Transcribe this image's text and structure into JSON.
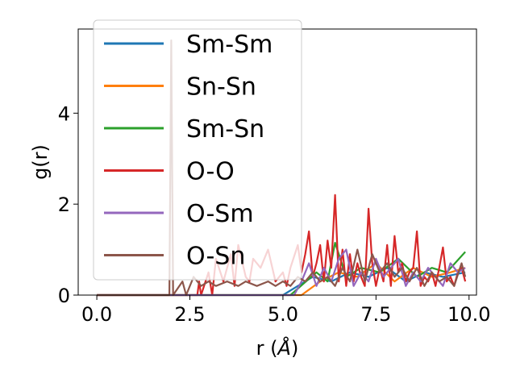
{
  "chart_data": {
    "type": "line",
    "xlabel_prefix": "r (",
    "xlabel_unit": "Å",
    "xlabel_suffix": ")",
    "ylabel": "g(r)",
    "xlim": [
      -0.5,
      10.2
    ],
    "ylim": [
      0,
      5.85
    ],
    "xticks": [
      0.0,
      2.5,
      5.0,
      7.5,
      10.0
    ],
    "xtick_labels": [
      "0.0",
      "2.5",
      "5.0",
      "7.5",
      "10.0"
    ],
    "yticks": [
      0,
      2,
      4
    ],
    "ytick_labels": [
      "0",
      "2",
      "4"
    ],
    "grid": false,
    "legend_position": "upper-left",
    "series": [
      {
        "name": "Sm-Sm",
        "color": "#1f77b4",
        "x": [
          0,
          5.0,
          5.8,
          6.3,
          6.8,
          7.3,
          7.8,
          8.3,
          8.8,
          9.3,
          9.9
        ],
        "y": [
          0,
          0,
          0.4,
          0.3,
          0.5,
          0.4,
          0.6,
          0.3,
          0.5,
          0.4,
          0.5
        ]
      },
      {
        "name": "Sn-Sn",
        "color": "#ff7f0e",
        "x": [
          0,
          5.5,
          6.0,
          6.5,
          7.0,
          7.5,
          8.0,
          8.5,
          9.0,
          9.5,
          9.9
        ],
        "y": [
          0,
          0,
          0.3,
          0.5,
          0.4,
          0.7,
          0.3,
          0.6,
          0.4,
          0.5,
          0.6
        ]
      },
      {
        "name": "Sm-Sn",
        "color": "#2ca02c",
        "x": [
          0,
          5.2,
          5.9,
          6.2,
          6.4,
          6.7,
          7.1,
          7.6,
          8.1,
          8.6,
          9.0,
          9.4,
          9.9
        ],
        "y": [
          0,
          0,
          0.5,
          0.3,
          1.15,
          0.4,
          0.6,
          0.5,
          0.8,
          0.4,
          0.6,
          0.5,
          0.95
        ]
      },
      {
        "name": "O-O",
        "color": "#d62728",
        "x": [
          0,
          2.7,
          2.75,
          2.8,
          3.0,
          3.1,
          3.2,
          3.4,
          3.6,
          3.7,
          3.8,
          4.0,
          4.1,
          4.2,
          4.4,
          4.6,
          4.8,
          5.0,
          5.1,
          5.2,
          5.4,
          5.5,
          5.6,
          5.7,
          5.8,
          5.9,
          6.0,
          6.1,
          6.2,
          6.3,
          6.4,
          6.5,
          6.6,
          6.7,
          6.8,
          6.9,
          7.0,
          7.1,
          7.2,
          7.3,
          7.4,
          7.5,
          7.6,
          7.7,
          7.8,
          7.9,
          8.0,
          8.1,
          8.2,
          8.3,
          8.4,
          8.5,
          8.6,
          8.7,
          8.8,
          8.9,
          9.0,
          9.1,
          9.2,
          9.3,
          9.4,
          9.5,
          9.6,
          9.7,
          9.8,
          9.9
        ],
        "y": [
          0,
          0,
          0.3,
          0,
          0.5,
          0,
          0.8,
          0.3,
          0.9,
          0.2,
          1.1,
          0.4,
          0.3,
          0.8,
          0.6,
          1.0,
          0.3,
          0.5,
          0.2,
          0.6,
          1.1,
          0.5,
          0.9,
          1.4,
          0.4,
          0.7,
          1.1,
          0.3,
          1.2,
          0.6,
          2.2,
          0.3,
          1.0,
          0.2,
          0.9,
          0.3,
          0.7,
          0.4,
          0.2,
          1.9,
          0.7,
          0.2,
          0.6,
          0.3,
          1.1,
          0.2,
          1.3,
          0.5,
          0.7,
          0.3,
          0.5,
          0.6,
          1.4,
          0.2,
          0.4,
          0.3,
          0.5,
          0.2,
          0.6,
          1.05,
          0.3,
          0.4,
          0.2,
          0.5,
          0.6,
          0.3
        ]
      },
      {
        "name": "O-Sm",
        "color": "#9467bd",
        "x": [
          0,
          5.3,
          5.5,
          5.7,
          5.9,
          6.1,
          6.3,
          6.5,
          6.7,
          6.9,
          7.1,
          7.3,
          7.5,
          7.7,
          7.9,
          8.1,
          8.3,
          8.5,
          8.7,
          8.9,
          9.1,
          9.3,
          9.5,
          9.7,
          9.9
        ],
        "y": [
          0,
          0,
          0.3,
          0.7,
          0.2,
          0.6,
          0.3,
          0.8,
          1.0,
          0.2,
          0.5,
          0.3,
          0.8,
          0.4,
          0.6,
          0.8,
          0.2,
          0.5,
          0.3,
          0.6,
          0.4,
          0.2,
          0.7,
          0.5,
          0.6
        ]
      },
      {
        "name": "O-Sn",
        "color": "#8c564b",
        "x": [
          0,
          1.95,
          2.0,
          2.05,
          2.3,
          2.4,
          2.6,
          2.8,
          3.0,
          3.2,
          3.5,
          3.8,
          4.0,
          4.3,
          4.6,
          4.8,
          5.0,
          5.2,
          5.4,
          5.6,
          5.8,
          6.0,
          6.2,
          6.4,
          6.6,
          6.8,
          7.0,
          7.2,
          7.4,
          7.6,
          7.8,
          8.0,
          8.2,
          8.4,
          8.6,
          8.8,
          9.0,
          9.2,
          9.4,
          9.6,
          9.8,
          9.9
        ],
        "y": [
          0,
          0,
          5.6,
          0,
          0.3,
          0,
          0.4,
          0.2,
          0.3,
          0.2,
          0.3,
          0.2,
          0.3,
          0.2,
          0.3,
          0.2,
          0.3,
          0.2,
          0.4,
          0.3,
          0.5,
          0.3,
          0.4,
          0.2,
          0.6,
          0.3,
          1.0,
          0.3,
          0.9,
          0.5,
          0.7,
          0.4,
          0.6,
          0.3,
          0.6,
          0.2,
          0.5,
          0.3,
          0.4,
          0.2,
          0.7,
          0.4
        ]
      }
    ]
  }
}
